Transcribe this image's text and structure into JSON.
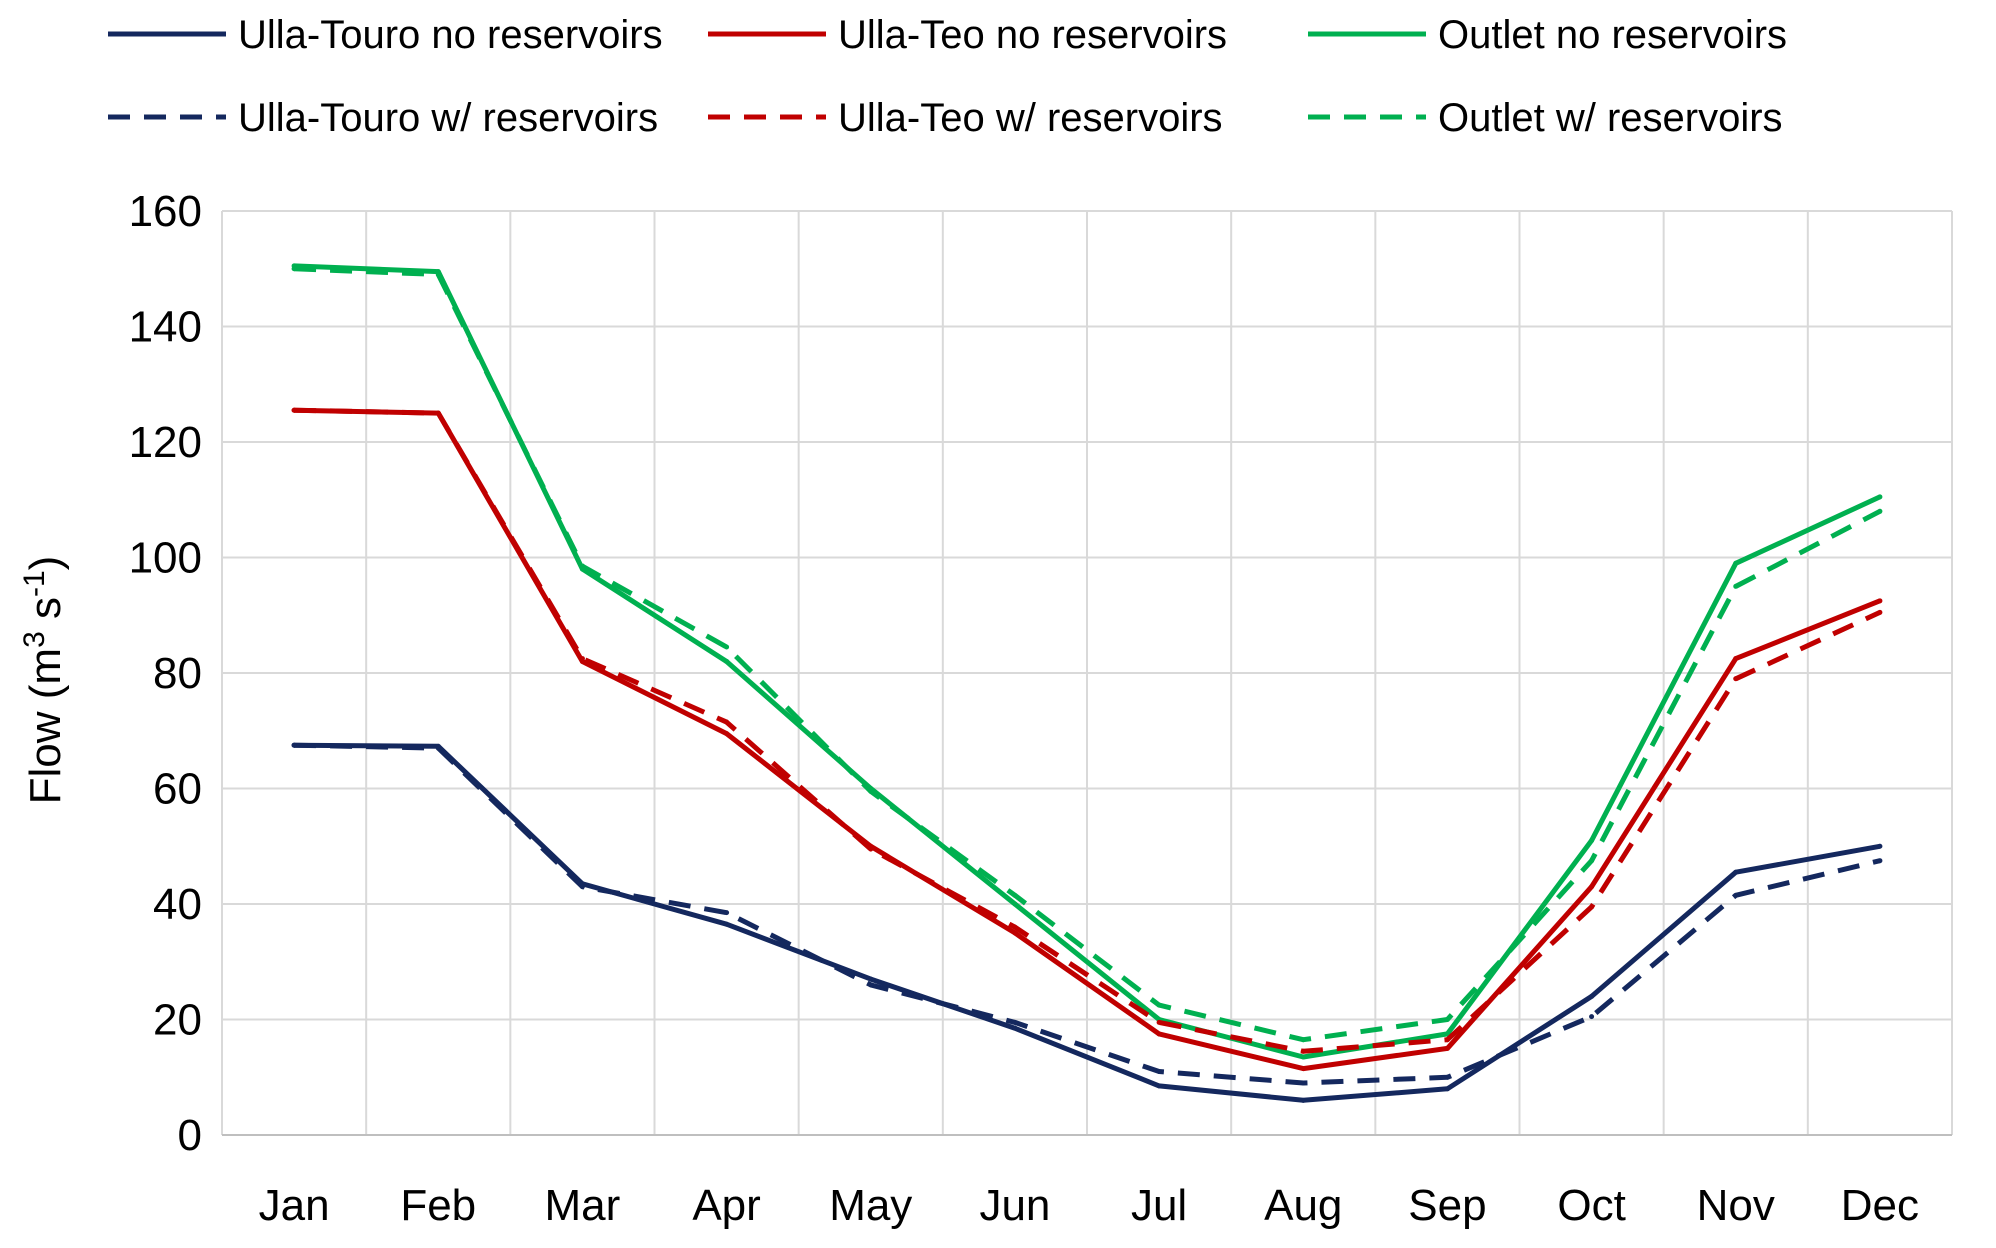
{
  "chart_data": {
    "type": "line",
    "title": "",
    "xlabel": "",
    "ylabel": "Flow (m",
    "ylabel_sup1": "3",
    "ylabel_mid": " s",
    "ylabel_sup2": "-1",
    "ylabel_end": ")",
    "ylim": [
      0,
      160
    ],
    "yticks": [
      "0",
      "20",
      "40",
      "60",
      "80",
      "100",
      "120",
      "140",
      "160"
    ],
    "ytick_values": [
      0,
      20,
      40,
      60,
      80,
      100,
      120,
      140,
      160
    ],
    "categories": [
      "Jan",
      "Feb",
      "Mar",
      "Apr",
      "May",
      "Jun",
      "Jul",
      "Aug",
      "Sep",
      "Oct",
      "Nov",
      "Dec"
    ],
    "grid": "on",
    "legend_position": "top",
    "series": [
      {
        "name": "Ulla-Touro no reservoirs",
        "color": "#14285e",
        "style": "solid",
        "values": [
          67.5,
          67.3,
          43.5,
          36.5,
          27.0,
          18.5,
          8.5,
          6.0,
          8.0,
          24.0,
          45.5,
          50.0
        ]
      },
      {
        "name": "Ulla-Teo no reservoirs",
        "color": "#c00000",
        "style": "solid",
        "values": [
          125.5,
          125.0,
          82.0,
          69.5,
          50.0,
          35.0,
          17.5,
          11.5,
          15.0,
          43.0,
          82.5,
          92.5
        ]
      },
      {
        "name": "Outlet no reservoirs",
        "color": "#00b050",
        "style": "solid",
        "values": [
          150.5,
          149.5,
          98.0,
          82.0,
          60.0,
          40.0,
          20.0,
          13.5,
          17.5,
          51.0,
          99.0,
          110.5
        ]
      },
      {
        "name": "Ulla-Touro w/ reservoirs",
        "color": "#14285e",
        "style": "dashed",
        "values": [
          67.5,
          67.0,
          43.0,
          38.5,
          26.0,
          19.5,
          11.0,
          9.0,
          10.0,
          20.5,
          41.5,
          47.5
        ]
      },
      {
        "name": "Ulla-Teo w/ reservoirs",
        "color": "#c00000",
        "style": "dashed",
        "values": [
          125.5,
          125.0,
          82.5,
          71.5,
          49.5,
          36.0,
          19.5,
          14.5,
          16.5,
          39.5,
          79.0,
          90.5
        ]
      },
      {
        "name": "Outlet w/ reservoirs",
        "color": "#00b050",
        "style": "dashed",
        "values": [
          150.0,
          149.0,
          98.5,
          84.5,
          59.5,
          41.5,
          22.5,
          16.5,
          20.0,
          47.5,
          95.0,
          108.0
        ]
      }
    ]
  }
}
